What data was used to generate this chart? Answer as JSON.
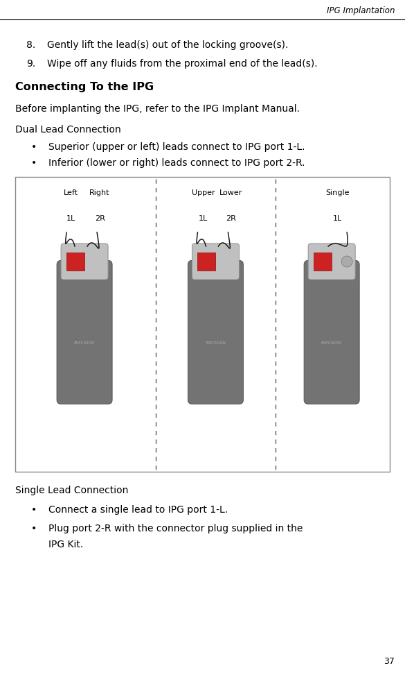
{
  "title_header": "IPG Implantation",
  "page_number": "37",
  "bg": "#ffffff",
  "text_color": "#000000",
  "item8": "Gently lift the lead(s) out of the locking groove(s).",
  "item9": "Wipe off any fluids from the proximal end of the lead(s).",
  "section_title": "Connecting To the IPG",
  "intro_text": "Before implanting the IPG, refer to the IPG Implant Manual.",
  "dual_title": "Dual Lead Connection",
  "bullet1": "Superior (upper or left) leads connect to IPG port 1-L.",
  "bullet2": "Inferior (lower or right) leads connect to IPG port 2-R.",
  "single_title": "Single Lead Connection",
  "single_b1": "Connect a single lead to IPG port 1-L.",
  "single_b2a": "Plug port 2-R with the connector plug supplied in the",
  "single_b2b": "IPG Kit.",
  "fig_box_color": "#dddddd",
  "device_body_color": "#737373",
  "device_body_dark": "#555555",
  "connector_color": "#c0c0c0",
  "connector_dark": "#909090",
  "red_port_color": "#cc2222",
  "wire_color": "#1a1a1a",
  "sep_color": "#444444",
  "precision_color": "#aaaaaa"
}
